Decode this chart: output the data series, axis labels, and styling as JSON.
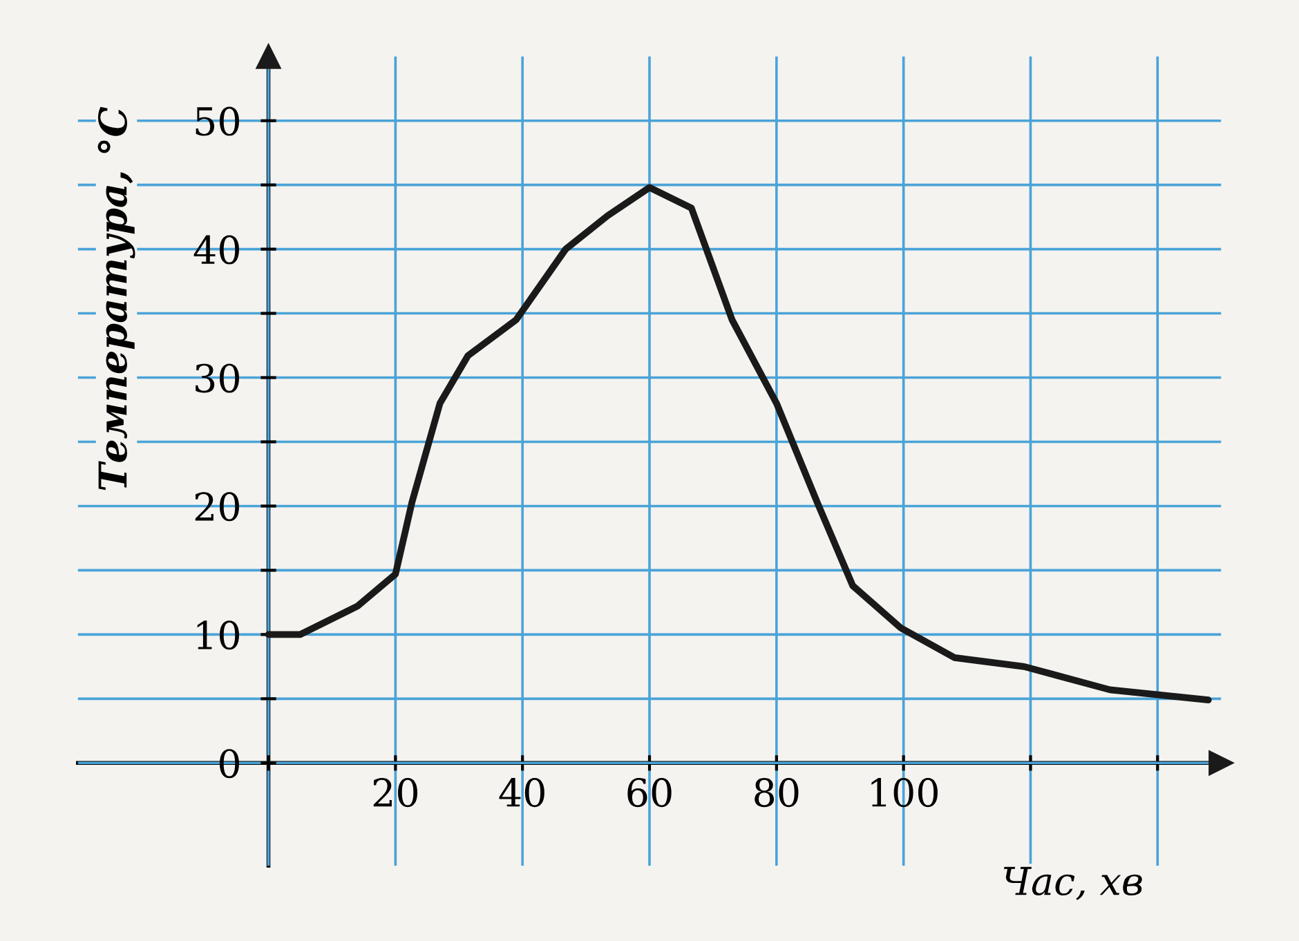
{
  "chart_data": {
    "type": "line",
    "xlabel": "Час, хв",
    "ylabel": "Температура, °C",
    "x": [
      0,
      5,
      14,
      20,
      22.6,
      27,
      31.4,
      39,
      46.8,
      53.4,
      60,
      66.6,
      73,
      80,
      86.4,
      92,
      99.6,
      108,
      119,
      132.5,
      148
    ],
    "series": [
      {
        "color": "#1a1a1a",
        "values": [
          10,
          10,
          12.2,
          14.7,
          20.3,
          28,
          31.7,
          34.5,
          40,
          42.6,
          44.8,
          43.2,
          34.5,
          28,
          20.3,
          13.8,
          10.5,
          8.2,
          7.5,
          5.7,
          4.9
        ]
      }
    ],
    "xlim": [
      -30,
      150
    ],
    "ylim": [
      -8,
      55
    ],
    "xticks": [
      {
        "value": 0,
        "label": null
      },
      20,
      40,
      60,
      80,
      100,
      {
        "value": 120,
        "label": null
      },
      {
        "value": 140,
        "label": null
      }
    ],
    "yticks": [
      0,
      {
        "value": 5,
        "label": null
      },
      10,
      {
        "value": 15,
        "label": null
      },
      20,
      {
        "value": 25,
        "label": null
      },
      30,
      {
        "value": 35,
        "label": null
      },
      40,
      {
        "value": 45,
        "label": null
      },
      50
    ],
    "grid": true,
    "marker": "none",
    "line_style": "solid",
    "legend": false
  }
}
